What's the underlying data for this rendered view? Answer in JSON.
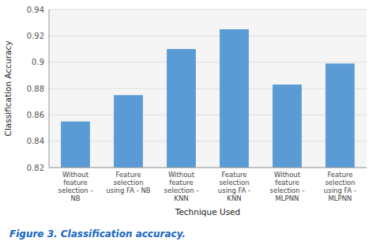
{
  "chart_data": {
    "type": "bar",
    "title": "Figure 3. Classification accuracy.",
    "categories": [
      "Without\nfeature\nselection -\nNB",
      "Feature\nselection\nusing FA - NB",
      "Without\nfeature\nselection -\nKNN",
      "Feature\nselection\nusing FA -\nKNN",
      "Without\nfeature\nselection -\nMLPNN",
      "Feature\nselection\nusing FA -\nMLPNN"
    ],
    "values": [
      0.855,
      0.875,
      0.91,
      0.925,
      0.883,
      0.899
    ],
    "color": "#5B9BD5",
    "xlabel": "Technique Used",
    "ylabel": "Classification Accuracy",
    "ylim": [
      0.82,
      0.94
    ],
    "yticks": [
      0.82,
      0.84,
      0.86,
      0.88,
      0.9,
      0.92,
      0.94
    ],
    "grid": true
  }
}
